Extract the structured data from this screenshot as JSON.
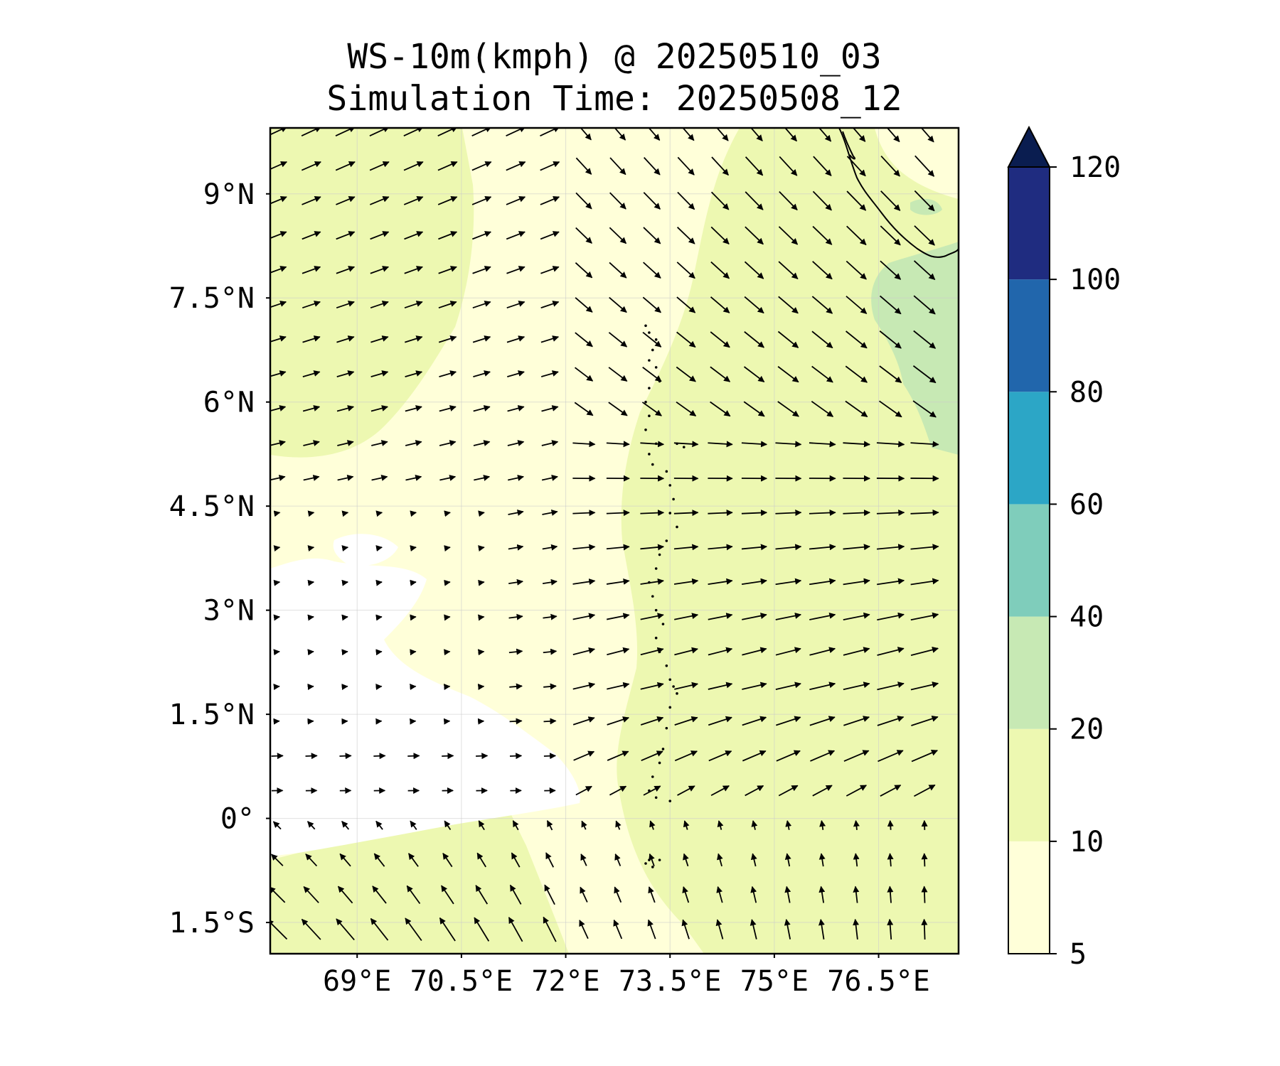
{
  "title": {
    "line1": "WS-10m(kmph) @ 20250510_03",
    "line2": "Simulation Time: 20250508_12"
  },
  "map": {
    "lon_range": [
      67.75,
      77.65
    ],
    "lat_range": [
      -1.95,
      9.95
    ],
    "x_ticks": [
      {
        "value": 69,
        "label": "69°E"
      },
      {
        "value": 70.5,
        "label": "70.5°E"
      },
      {
        "value": 72,
        "label": "72°E"
      },
      {
        "value": 73.5,
        "label": "73.5°E"
      },
      {
        "value": 75,
        "label": "75°E"
      },
      {
        "value": 76.5,
        "label": "76.5°E"
      }
    ],
    "y_ticks": [
      {
        "value": 9,
        "label": "9°N"
      },
      {
        "value": 7.5,
        "label": "7.5°N"
      },
      {
        "value": 6,
        "label": "6°N"
      },
      {
        "value": 4.5,
        "label": "4.5°N"
      },
      {
        "value": 3,
        "label": "3°N"
      },
      {
        "value": 1.5,
        "label": "1.5°N"
      },
      {
        "value": 0,
        "label": "0°"
      },
      {
        "value": -1.5,
        "label": "1.5°S"
      }
    ],
    "gridlines": true,
    "fill_colors": {
      "below_5": "#ffffff",
      "5_10": "#ffffd9",
      "10_20": "#edf8b1",
      "20_40": "#c7e9b4"
    }
  },
  "colorbar": {
    "levels": [
      5,
      10,
      20,
      40,
      60,
      80,
      100,
      120
    ],
    "labels": [
      "5",
      "10",
      "20",
      "40",
      "60",
      "80",
      "100",
      "120"
    ],
    "colors": [
      "#ffffd9",
      "#edf8b1",
      "#c7e9b4",
      "#7fcdbb",
      "#2ca6c6",
      "#2166ac",
      "#1f2c80"
    ],
    "extend_color": "#0a1d50",
    "extend": "max"
  }
}
